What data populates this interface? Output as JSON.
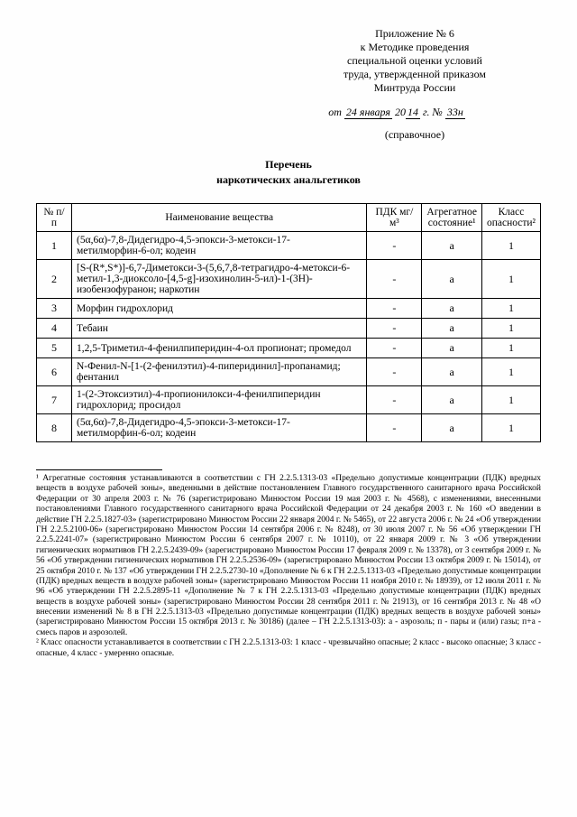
{
  "header": {
    "l1": "Приложение № 6",
    "l2": "к Методике проведения",
    "l3": "специальной оценки условий",
    "l4": "труда, утвержденной приказом",
    "l5": "Минтруда России"
  },
  "dateline": {
    "prefix": "от",
    "hw1": "24 января",
    "mid": "20",
    "hw2": "14",
    "suffix": "г. №",
    "hw3": "33н"
  },
  "ref": "(справочное)",
  "title": "Перечень",
  "subtitle": "наркотических анальгетиков",
  "thead": {
    "c1": "№ п/п",
    "c2": "Наименование вещества",
    "c3": "ПДК мг/м³",
    "c4": "Агрегатное состояние¹",
    "c5": "Класс опасности²"
  },
  "rows": [
    {
      "n": "1",
      "name": "(5α,6α)-7,8-Дидегидро-4,5-эпокси-3-метокси-17-метилморфин-6-ол; кодеин",
      "pdk": "-",
      "agr": "а",
      "kl": "1"
    },
    {
      "n": "2",
      "name": "[S-(R*,S*)]-6,7-Диметокси-3-(5,6,7,8-тетрагидро-4-метокси-6-метил-1,3-диоксоло-[4,5-g]-изохинолин-5-ил)-1-(3H)-изобензофуранон; наркотин",
      "pdk": "-",
      "agr": "а",
      "kl": "1"
    },
    {
      "n": "3",
      "name": "Морфин гидрохлорид",
      "pdk": "-",
      "agr": "а",
      "kl": "1"
    },
    {
      "n": "4",
      "name": "Тебаин",
      "pdk": "-",
      "agr": "а",
      "kl": "1"
    },
    {
      "n": "5",
      "name": "1,2,5-Триметил-4-фенилпиперидин-4-ол пропионат; промедол",
      "pdk": "-",
      "agr": "а",
      "kl": "1"
    },
    {
      "n": "6",
      "name": "N-Фенил-N-[1-(2-фенилэтил)-4-пиперидинил]-пропанамид; фентанил",
      "pdk": "-",
      "agr": "а",
      "kl": "1"
    },
    {
      "n": "7",
      "name": "1-(2-Этоксиэтил)-4-пропионилокси-4-фенилпиперидин гидрохлорид; просидол",
      "pdk": "-",
      "agr": "а",
      "kl": "1"
    },
    {
      "n": "8",
      "name": "(5α,6α)-7,8-Дидегидро-4,5-эпокси-3-метокси-17-метилморфин-6-ол; кодеин",
      "pdk": "-",
      "agr": "а",
      "kl": "1"
    }
  ],
  "fn1": "¹ Агрегатные состояния устанавливаются в соответствии с ГН 2.2.5.1313-03 «Предельно допустимые концентрации (ПДК) вредных веществ в воздухе рабочей зоны», введенными в действие постановлением Главного государственного санитарного врача Российской Федерации от 30 апреля 2003 г. № 76 (зарегистрировано Минюстом России 19 мая 2003 г. № 4568), с изменениями, внесенными постановлениями Главного государственного санитарного врача Российской Федерации от 24 декабря 2003 г. № 160 «О введении в действие ГН 2.2.5.1827-03» (зарегистрировано Минюстом России 22 января 2004 г. № 5465), от 22 августа 2006 г. № 24 «Об утверждении ГН 2.2.5.2100-06» (зарегистрировано Минюстом России 14 сентября 2006 г. № 8248), от 30 июля 2007 г. № 56 «Об утверждении ГН 2.2.5.2241-07» (зарегистрировано Минюстом России 6 сентября 2007 г. № 10110), от 22 января 2009 г. № 3 «Об утверждении гигиенических нормативов ГН 2.2.5.2439-09» (зарегистрировано Минюстом России 17 февраля 2009 г. № 13378), от 3 сентября 2009 г. № 56 «Об утверждении гигиенических нормативов ГН 2.2.5.2536-09» (зарегистрировано Минюстом России 13 октября 2009 г. № 15014), от 25 октября 2010 г. № 137 «Об утверждении ГН 2.2.5.2730-10 «Дополнение № 6 к ГН 2.2.5.1313-03 «Предельно допустимые концентрации (ПДК) вредных веществ в воздухе рабочей зоны» (зарегистрировано Минюстом России 11 ноября 2010 г. № 18939), от 12 июля 2011 г. № 96 «Об утверждении ГН 2.2.5.2895-11 «Дополнение № 7 к ГН 2.2.5.1313-03 «Предельно допустимые концентрации (ПДК) вредных веществ в воздухе рабочей зоны» (зарегистрировано Минюстом России 28 сентября 2011 г. № 21913), от 16 сентября 2013 г. № 48 «О внесении изменений № 8 в ГН 2.2.5.1313-03 «Предельно допустимые концентрации (ПДК) вредных веществ в воздухе рабочей зоны» (зарегистрировано Минюстом России 15 октября 2013 г. № 30186) (далее – ГН 2.2.5.1313-03): а - аэрозоль; п - пары и (или) газы; п+а - смесь паров и аэрозолей.",
  "fn2": "² Класс опасности устанавливается в соответствии с ГН 2.2.5.1313-03: 1 класс - чрезвычайно опасные; 2 класс - высоко опасные; 3 класс - опасные, 4 класс - умеренно опасные."
}
